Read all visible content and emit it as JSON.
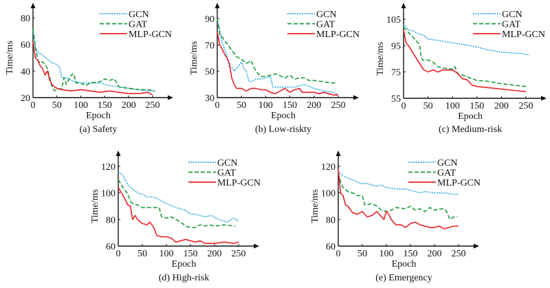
{
  "colors": {
    "GCN": "#2aa8e0",
    "GAT": "#1b9a3c",
    "MLP-GCN": "#e8202a",
    "axis": "#111111"
  },
  "chart_data": [
    {
      "type": "line",
      "caption": "(a) Safety",
      "xlabel": "Epoch",
      "ylabel": "Time/ms",
      "xticks": [
        0,
        50,
        100,
        150,
        200,
        250
      ],
      "yticks": [
        20,
        40,
        60,
        80
      ],
      "xlim": [
        0,
        250
      ],
      "ylim": [
        20,
        80
      ],
      "legend_position": "top-right",
      "series": [
        {
          "name": "GCN",
          "style": "dotted",
          "x": [
            0,
            5,
            10,
            20,
            30,
            40,
            50,
            55,
            60,
            70,
            80,
            90,
            100,
            120,
            140,
            160,
            180,
            200,
            220,
            240,
            255
          ],
          "y": [
            70,
            58,
            54,
            52,
            49,
            46,
            45,
            43,
            35,
            35,
            33,
            32,
            31,
            31,
            31,
            29,
            28,
            27,
            26,
            25,
            25
          ]
        },
        {
          "name": "GAT",
          "style": "dashed",
          "x": [
            0,
            5,
            10,
            15,
            20,
            25,
            30,
            35,
            40,
            45,
            50,
            60,
            65,
            70,
            80,
            85,
            90,
            100,
            110,
            120,
            140,
            150,
            160,
            170,
            180,
            200,
            220,
            240,
            255
          ],
          "y": [
            72,
            58,
            48,
            46,
            47,
            45,
            42,
            35,
            28,
            25,
            26,
            27,
            35,
            30,
            37,
            38,
            31,
            31,
            29,
            31,
            32,
            34,
            33,
            34,
            28,
            27,
            26,
            26,
            25
          ]
        },
        {
          "name": "MLP-GCN",
          "style": "solid",
          "x": [
            0,
            5,
            10,
            15,
            20,
            25,
            30,
            35,
            40,
            45,
            50,
            60,
            80,
            100,
            120,
            140,
            160,
            180,
            200,
            220,
            240,
            250
          ],
          "y": [
            62,
            50,
            48,
            44,
            42,
            37,
            40,
            33,
            30,
            28,
            27,
            26,
            25,
            26,
            25,
            24,
            25,
            24,
            23,
            23,
            24,
            22
          ]
        }
      ]
    },
    {
      "type": "line",
      "caption": "(b) Low-riskty",
      "xlabel": "Epoch",
      "ylabel": "Time/ms",
      "xticks": [
        0,
        50,
        100,
        150,
        200,
        250
      ],
      "yticks": [
        30,
        50,
        70,
        90
      ],
      "xlim": [
        0,
        250
      ],
      "ylim": [
        30,
        90
      ],
      "legend_position": "top-right",
      "series": [
        {
          "name": "GCN",
          "style": "dotted",
          "x": [
            0,
            5,
            10,
            20,
            25,
            30,
            35,
            40,
            50,
            55,
            60,
            65,
            70,
            80,
            90,
            100,
            110,
            115,
            120,
            140,
            160,
            170,
            180,
            200,
            220,
            240,
            250
          ],
          "y": [
            90,
            82,
            72,
            62,
            53,
            53,
            50,
            52,
            57,
            52,
            50,
            43,
            42,
            44,
            44,
            45,
            46,
            38,
            38,
            38,
            38,
            39,
            40,
            37,
            35,
            34,
            32
          ]
        },
        {
          "name": "GAT",
          "style": "dashed",
          "x": [
            0,
            5,
            10,
            20,
            30,
            40,
            50,
            60,
            70,
            80,
            90,
            100,
            110,
            120,
            140,
            150,
            160,
            170,
            180,
            190,
            200,
            220,
            240,
            248
          ],
          "y": [
            90,
            78,
            76,
            71,
            66,
            61,
            59,
            56,
            58,
            50,
            46,
            46,
            47,
            48,
            45,
            47,
            44,
            45,
            45,
            43,
            43,
            42,
            41,
            41
          ]
        },
        {
          "name": "MLP-GCN",
          "style": "solid",
          "x": [
            0,
            5,
            10,
            15,
            20,
            25,
            30,
            35,
            40,
            50,
            60,
            70,
            80,
            90,
            100,
            110,
            120,
            130,
            140,
            150,
            160,
            170,
            175,
            190,
            200,
            210,
            220,
            230,
            240,
            250
          ],
          "y": [
            80,
            70,
            67,
            63,
            60,
            56,
            45,
            40,
            37,
            37,
            35,
            37,
            37,
            36,
            36,
            34,
            33,
            35,
            37,
            34,
            36,
            37,
            34,
            34,
            34,
            33,
            34,
            33,
            32,
            32
          ]
        }
      ]
    },
    {
      "type": "line",
      "caption": "(c) Medium-risk",
      "xlabel": "Epoch",
      "ylabel": "Time/ms",
      "xticks": [
        0,
        50,
        100,
        150,
        200,
        250
      ],
      "yticks": [
        55,
        75,
        95,
        105
      ],
      "xlim": [
        0,
        250
      ],
      "ylim": [
        55,
        105
      ],
      "legend_position": "top-right",
      "series": [
        {
          "name": "GCN",
          "style": "dotted",
          "x": [
            0,
            10,
            20,
            30,
            40,
            50,
            70,
            100,
            120,
            150,
            170,
            200,
            220,
            240,
            255
          ],
          "y": [
            103,
            101,
            100.5,
            99.5,
            99,
            97.5,
            97,
            96,
            95.5,
            94,
            92,
            90,
            89.5,
            89,
            88
          ]
        },
        {
          "name": "GAT",
          "style": "dashed",
          "x": [
            0,
            10,
            20,
            30,
            33,
            36,
            40,
            50,
            60,
            70,
            80,
            100,
            105,
            110,
            125,
            150,
            170,
            200,
            225,
            250
          ],
          "y": [
            102,
            100,
            98,
            96,
            95,
            86,
            84,
            84,
            82.5,
            79,
            78,
            77,
            79,
            74,
            72,
            68.5,
            68,
            66,
            65,
            64
          ]
        },
        {
          "name": "MLP-GCN",
          "style": "solid",
          "x": [
            0,
            5,
            10,
            20,
            30,
            40,
            50,
            60,
            70,
            80,
            100,
            110,
            120,
            130,
            140,
            150,
            175,
            200,
            225,
            250
          ],
          "y": [
            101,
            96,
            95,
            89,
            83,
            77,
            75,
            76.5,
            75,
            76.5,
            76.5,
            74,
            70,
            69,
            65,
            64,
            63,
            62,
            61,
            60
          ]
        }
      ]
    },
    {
      "type": "line",
      "caption": "(d) High-risk",
      "xlabel": "Epoch",
      "ylabel": "Time/ms",
      "xticks": [
        0,
        50,
        100,
        150,
        200,
        250
      ],
      "yticks": [
        60,
        80,
        100,
        120
      ],
      "xlim": [
        0,
        250
      ],
      "ylim": [
        60,
        120
      ],
      "legend_position": "top-right",
      "series": [
        {
          "name": "GCN",
          "style": "dotted",
          "x": [
            0,
            10,
            20,
            30,
            40,
            50,
            60,
            70,
            80,
            90,
            100,
            120,
            140,
            150,
            160,
            170,
            180,
            193,
            210,
            226,
            240,
            250
          ],
          "y": [
            116,
            113,
            106,
            103,
            100,
            99,
            97,
            97,
            96,
            94,
            92,
            89,
            87,
            84,
            84,
            83,
            82,
            83,
            80,
            78,
            81,
            79
          ]
        },
        {
          "name": "GAT",
          "style": "dashed",
          "x": [
            0,
            10,
            20,
            25,
            30,
            40,
            50,
            60,
            70,
            80,
            85,
            90,
            100,
            110,
            120,
            130,
            140,
            150,
            160,
            170,
            180,
            190,
            200,
            220,
            243
          ],
          "y": [
            110,
            104,
            99,
            94,
            92,
            91,
            89,
            89,
            89,
            89,
            89,
            82,
            81,
            82,
            80,
            78,
            75,
            74,
            74,
            76,
            75,
            76,
            75,
            76,
            75
          ]
        },
        {
          "name": "MLP-GCN",
          "style": "solid",
          "x": [
            0,
            10,
            20,
            25,
            30,
            35,
            40,
            50,
            60,
            65,
            70,
            75,
            80,
            90,
            100,
            110,
            120,
            130,
            140,
            150,
            160,
            170,
            180,
            200,
            220,
            240,
            250
          ],
          "y": [
            104,
            98,
            91,
            90,
            80,
            83,
            80,
            77,
            76,
            78,
            76,
            73,
            68,
            67,
            67,
            66,
            63,
            64,
            65,
            64,
            63,
            64,
            62,
            62,
            63,
            62,
            63
          ]
        }
      ]
    },
    {
      "type": "line",
      "caption": "(e) Emergency",
      "xlabel": "Epoch",
      "ylabel": "Time/ms",
      "xticks": [
        0,
        50,
        100,
        150,
        200,
        250
      ],
      "yticks": [
        60,
        80,
        100,
        120
      ],
      "xlim": [
        0,
        250
      ],
      "ylim": [
        60,
        120
      ],
      "legend_position": "top-right",
      "series": [
        {
          "name": "GCN",
          "style": "dotted",
          "x": [
            0,
            10,
            20,
            30,
            40,
            50,
            60,
            70,
            80,
            90,
            100,
            120,
            140,
            160,
            170,
            180,
            200,
            220,
            240,
            250
          ],
          "y": [
            116,
            113,
            111,
            110,
            108,
            107,
            107,
            106,
            105,
            106,
            104,
            103,
            103,
            101,
            100,
            101,
            100,
            100,
            99,
            99
          ]
        },
        {
          "name": "GAT",
          "style": "dashed",
          "x": [
            0,
            5,
            10,
            20,
            30,
            40,
            50,
            55,
            60,
            70,
            80,
            90,
            100,
            110,
            120,
            140,
            150,
            160,
            170,
            180,
            190,
            200,
            210,
            220,
            225,
            232,
            240,
            248
          ],
          "y": [
            115,
            108,
            104,
            101,
            100,
            98,
            98,
            91,
            91,
            92,
            90,
            87,
            86,
            87,
            89,
            88,
            90,
            87,
            88,
            86,
            89,
            87,
            88,
            88,
            86,
            80,
            82,
            82
          ]
        },
        {
          "name": "MLP-GCN",
          "style": "solid",
          "x": [
            0,
            5,
            10,
            15,
            20,
            30,
            40,
            50,
            60,
            70,
            80,
            90,
            95,
            100,
            105,
            110,
            120,
            130,
            140,
            150,
            160,
            170,
            180,
            190,
            200,
            210,
            220,
            230,
            240,
            250
          ],
          "y": [
            118,
            100,
            98,
            91,
            90,
            85,
            84,
            86,
            82,
            83,
            86,
            82,
            80,
            86,
            84,
            80,
            76,
            76,
            74,
            77,
            78,
            76,
            75,
            74,
            74,
            75,
            73,
            74,
            75,
            75
          ]
        }
      ]
    }
  ]
}
